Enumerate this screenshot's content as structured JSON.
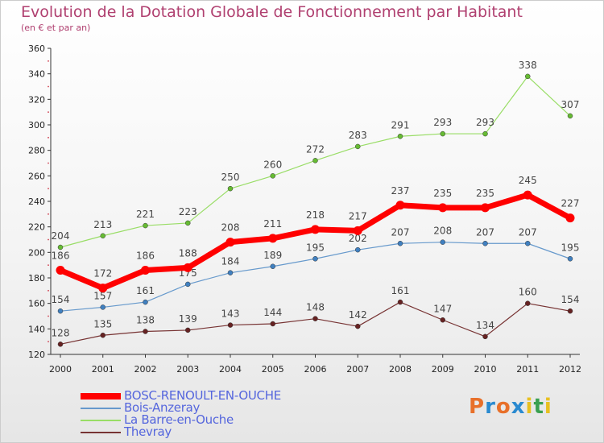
{
  "header": {
    "title": "Evolution de la Dotation Globale de Fonctionnement par Habitant",
    "subtitle": "(en € et par an)"
  },
  "logo": {
    "letters": [
      "P",
      "r",
      "o",
      "x",
      "i",
      "t",
      "i"
    ],
    "colors": [
      "#e8702a",
      "#2a8ad0",
      "#e8702a",
      "#2a8ad0",
      "#e8c020",
      "#3aa050",
      "#e8c020"
    ]
  },
  "chart_data": {
    "type": "line",
    "x": [
      "2000",
      "2001",
      "2002",
      "2003",
      "2004",
      "2005",
      "2006",
      "2007",
      "2008",
      "2009",
      "2010",
      "2011",
      "2012"
    ],
    "ylim": [
      120,
      360
    ],
    "yticks": [
      120,
      140,
      160,
      180,
      200,
      220,
      240,
      260,
      280,
      300,
      320,
      340,
      360
    ],
    "grid": false,
    "legend": "bottom-left",
    "series": [
      {
        "name": "BOSC-RENOULT-EN-OUCHE",
        "color": "#ff0000",
        "marker": "#ff0000",
        "width": 7,
        "values": [
          186,
          172,
          186,
          188,
          208,
          211,
          218,
          217,
          237,
          235,
          235,
          245,
          227
        ]
      },
      {
        "name": "Bois-Anzeray",
        "color": "#6699cc",
        "marker": "#4080c0",
        "width": 1.2,
        "values": [
          154,
          157,
          161,
          175,
          184,
          189,
          195,
          202,
          207,
          208,
          207,
          207,
          195
        ]
      },
      {
        "name": "La Barre-en-Ouche",
        "color": "#99dd66",
        "marker": "#66bb33",
        "width": 1.2,
        "values": [
          204,
          213,
          221,
          223,
          250,
          260,
          272,
          283,
          291,
          293,
          293,
          338,
          307
        ]
      },
      {
        "name": "Thevray",
        "color": "#773333",
        "marker": "#662222",
        "width": 1.2,
        "values": [
          128,
          135,
          138,
          139,
          143,
          144,
          148,
          142,
          161,
          147,
          134,
          160,
          154
        ]
      }
    ]
  }
}
